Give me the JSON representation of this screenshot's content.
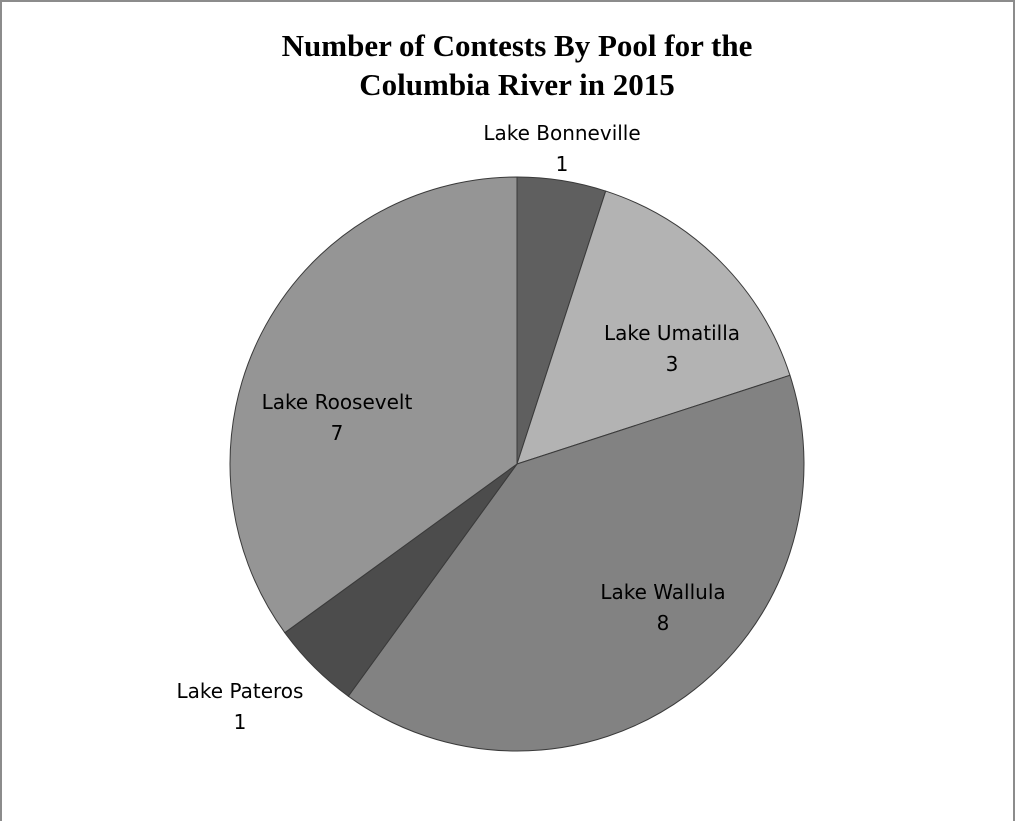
{
  "chart_data": {
    "type": "pie",
    "title_lines": [
      "Number of Contests  By Pool for the",
      "Columbia River in 2015"
    ],
    "slices": [
      {
        "label": "Lake Bonneville",
        "value": 1,
        "color": "#5f5f5f"
      },
      {
        "label": "Lake Umatilla",
        "value": 3,
        "color": "#b3b3b3"
      },
      {
        "label": "Lake Wallula",
        "value": 8,
        "color": "#828282"
      },
      {
        "label": "Lake Pateros",
        "value": 1,
        "color": "#4c4c4c"
      },
      {
        "label": "Lake Roosevelt",
        "value": 7,
        "color": "#959595"
      }
    ]
  }
}
